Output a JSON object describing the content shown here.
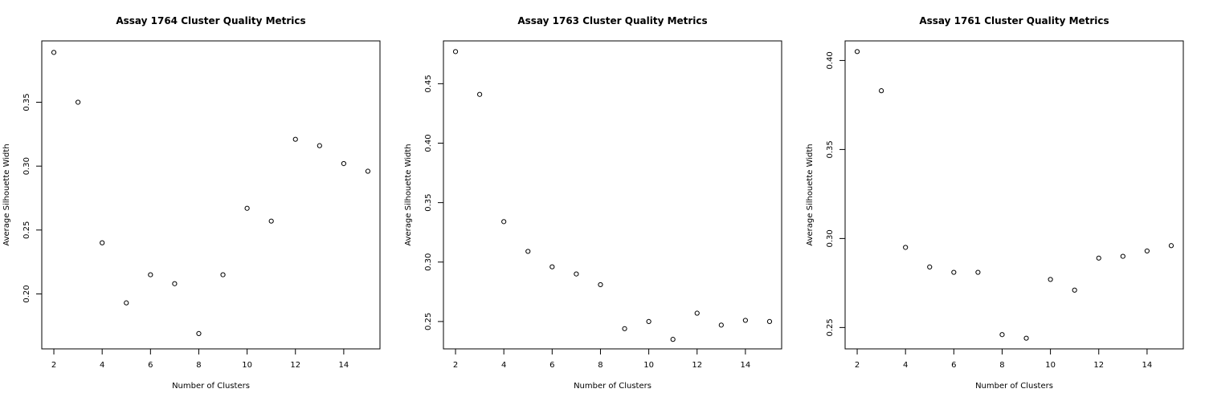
{
  "chart_data": [
    {
      "type": "scatter",
      "title": "Assay 1764 Cluster Quality Metrics",
      "xlabel": "Number of Clusters",
      "ylabel": "Average Silhouette Width",
      "xlim": [
        1.5,
        15.5
      ],
      "ylim": [
        0.157,
        0.398
      ],
      "xticks": [
        2,
        4,
        6,
        8,
        10,
        12,
        14
      ],
      "xtick_labels": [
        "2",
        "4",
        "6",
        "8",
        "10",
        "12",
        "14"
      ],
      "yticks": [
        0.2,
        0.25,
        0.3,
        0.35
      ],
      "ytick_labels": [
        "0.20",
        "0.25",
        "0.30",
        "0.35"
      ],
      "grid": false,
      "x": [
        2,
        3,
        4,
        5,
        6,
        7,
        8,
        9,
        10,
        11,
        12,
        13,
        14,
        15
      ],
      "y": [
        0.389,
        0.35,
        0.24,
        0.193,
        0.215,
        0.208,
        0.169,
        0.215,
        0.267,
        0.257,
        0.321,
        0.316,
        0.302,
        0.296
      ]
    },
    {
      "type": "scatter",
      "title": "Assay 1763 Cluster Quality Metrics",
      "xlabel": "Number of Clusters",
      "ylabel": "Average Silhouette Width",
      "xlim": [
        1.5,
        15.5
      ],
      "ylim": [
        0.227,
        0.486
      ],
      "xticks": [
        2,
        4,
        6,
        8,
        10,
        12,
        14
      ],
      "xtick_labels": [
        "2",
        "4",
        "6",
        "8",
        "10",
        "12",
        "14"
      ],
      "yticks": [
        0.25,
        0.3,
        0.35,
        0.4,
        0.45
      ],
      "ytick_labels": [
        "0.25",
        "0.30",
        "0.35",
        "0.40",
        "0.45"
      ],
      "grid": false,
      "x": [
        2,
        3,
        4,
        5,
        6,
        7,
        8,
        9,
        10,
        11,
        12,
        13,
        14,
        15
      ],
      "y": [
        0.477,
        0.441,
        0.334,
        0.309,
        0.296,
        0.29,
        0.281,
        0.244,
        0.25,
        0.235,
        0.257,
        0.247,
        0.251,
        0.25
      ]
    },
    {
      "type": "scatter",
      "title": "Assay 1761 Cluster Quality Metrics",
      "xlabel": "Number of Clusters",
      "ylabel": "Average Silhouette Width",
      "xlim": [
        1.5,
        15.5
      ],
      "ylim": [
        0.238,
        0.411
      ],
      "xticks": [
        2,
        4,
        6,
        8,
        10,
        12,
        14
      ],
      "xtick_labels": [
        "2",
        "4",
        "6",
        "8",
        "10",
        "12",
        "14"
      ],
      "yticks": [
        0.25,
        0.3,
        0.35,
        0.4
      ],
      "ytick_labels": [
        "0.25",
        "0.30",
        "0.35",
        "0.40"
      ],
      "grid": false,
      "x": [
        2,
        3,
        4,
        5,
        6,
        7,
        8,
        9,
        10,
        11,
        12,
        13,
        14,
        15
      ],
      "y": [
        0.405,
        0.383,
        0.295,
        0.284,
        0.281,
        0.281,
        0.246,
        0.244,
        0.277,
        0.271,
        0.289,
        0.29,
        0.293,
        0.296
      ]
    }
  ]
}
